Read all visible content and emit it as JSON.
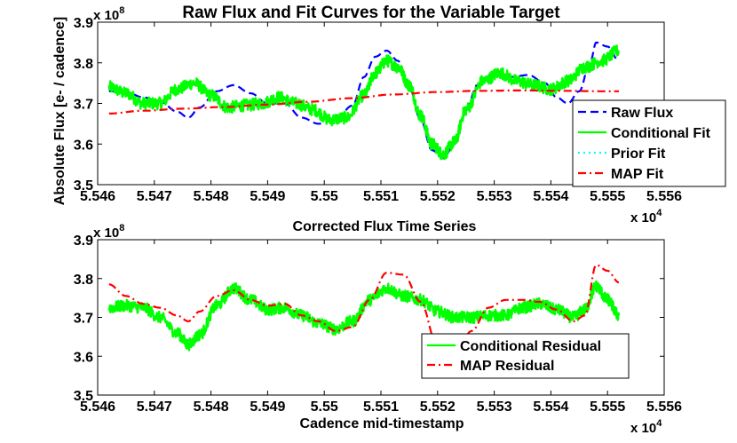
{
  "chart_data": [
    {
      "type": "line",
      "title": "Raw Flux and Fit Curves for the Variable Target",
      "ylabel": "Absolute Flux [e- / cadence]",
      "xlabel": "",
      "x_exponent": "x 10",
      "x_exponent_power": "4",
      "y_exponent": "x 10",
      "y_exponent_power": "8",
      "xlim": [
        5.546,
        5.556
      ],
      "ylim": [
        3.5,
        3.9
      ],
      "x_ticks": [
        "5.546",
        "5.547",
        "5.548",
        "5.549",
        "5.55",
        "5.551",
        "5.552",
        "5.553",
        "5.554",
        "5.555",
        "5.556"
      ],
      "y_ticks": [
        "3.5",
        "3.6",
        "3.7",
        "3.8",
        "3.9"
      ],
      "legend_position": "bottom-right",
      "series": [
        {
          "name": "Raw Flux",
          "color": "#0000ff",
          "style": "dashed",
          "x": [
            5.5462,
            5.5465,
            5.5468,
            5.5471,
            5.5474,
            5.5476,
            5.5478,
            5.5481,
            5.5484,
            5.5487,
            5.549,
            5.5493,
            5.5496,
            5.5499,
            5.5502,
            5.5505,
            5.5507,
            5.5509,
            5.5511,
            5.5513,
            5.5515,
            5.5517,
            5.5519,
            5.5521,
            5.5523,
            5.5525,
            5.5527,
            5.553,
            5.5533,
            5.5536,
            5.5539,
            5.5541,
            5.5543,
            5.5545,
            5.5547,
            5.5548,
            5.555,
            5.5552
          ],
          "y": [
            3.73,
            3.728,
            3.715,
            3.705,
            3.68,
            3.665,
            3.69,
            3.73,
            3.745,
            3.725,
            3.7,
            3.7,
            3.665,
            3.65,
            3.66,
            3.695,
            3.765,
            3.815,
            3.83,
            3.805,
            3.74,
            3.66,
            3.585,
            3.565,
            3.6,
            3.68,
            3.745,
            3.775,
            3.765,
            3.77,
            3.75,
            3.715,
            3.7,
            3.73,
            3.805,
            3.85,
            3.84,
            3.805
          ]
        },
        {
          "name": "Conditional Fit",
          "color": "#00ff00",
          "style": "solid",
          "x": [
            5.5462,
            5.5465,
            5.5468,
            5.5471,
            5.5474,
            5.5477,
            5.548,
            5.5483,
            5.5486,
            5.5489,
            5.5492,
            5.5495,
            5.5498,
            5.5501,
            5.5504,
            5.5507,
            5.5509,
            5.5511,
            5.5513,
            5.5515,
            5.5517,
            5.5519,
            5.5521,
            5.5523,
            5.5525,
            5.5528,
            5.5531,
            5.5534,
            5.5537,
            5.554,
            5.5543,
            5.5546,
            5.5549,
            5.5552
          ],
          "y": [
            3.74,
            3.725,
            3.7,
            3.7,
            3.735,
            3.75,
            3.72,
            3.69,
            3.695,
            3.7,
            3.715,
            3.7,
            3.685,
            3.66,
            3.665,
            3.72,
            3.775,
            3.805,
            3.79,
            3.745,
            3.67,
            3.6,
            3.575,
            3.605,
            3.685,
            3.755,
            3.775,
            3.755,
            3.745,
            3.735,
            3.755,
            3.79,
            3.805,
            3.83
          ]
        },
        {
          "name": "Prior Fit",
          "color": "#00ffff",
          "style": "dotted",
          "x": [],
          "y": []
        },
        {
          "name": "MAP Fit",
          "color": "#ff0000",
          "style": "dashdot",
          "x": [
            5.5462,
            5.5468,
            5.5475,
            5.5482,
            5.549,
            5.5497,
            5.5505,
            5.5512,
            5.552,
            5.5527,
            5.5535,
            5.5542,
            5.5549,
            5.5552
          ],
          "y": [
            3.675,
            3.682,
            3.687,
            3.691,
            3.697,
            3.704,
            3.713,
            3.722,
            3.728,
            3.731,
            3.732,
            3.731,
            3.73,
            3.73
          ]
        }
      ]
    },
    {
      "type": "line",
      "title": "Corrected Flux Time Series",
      "xlabel": "Cadence mid-timestamp",
      "ylabel": "",
      "x_exponent": "x 10",
      "x_exponent_power": "4",
      "y_exponent": "x 10",
      "y_exponent_power": "8",
      "xlim": [
        5.546,
        5.556
      ],
      "ylim": [
        3.5,
        3.9
      ],
      "x_ticks": [
        "5.546",
        "5.547",
        "5.548",
        "5.549",
        "5.55",
        "5.551",
        "5.552",
        "5.553",
        "5.554",
        "5.555",
        "5.556"
      ],
      "y_ticks": [
        "3.5",
        "3.6",
        "3.7",
        "3.8",
        "3.9"
      ],
      "legend_position": "bottom-right",
      "series": [
        {
          "name": "Conditional Residual",
          "color": "#00ff00",
          "style": "solid",
          "x": [
            5.5462,
            5.5465,
            5.5468,
            5.5471,
            5.5474,
            5.5476,
            5.5478,
            5.5481,
            5.5484,
            5.5487,
            5.549,
            5.5493,
            5.5496,
            5.5499,
            5.5502,
            5.5505,
            5.5508,
            5.5511,
            5.5514,
            5.5517,
            5.552,
            5.5523,
            5.5526,
            5.5529,
            5.5532,
            5.5535,
            5.5538,
            5.5541,
            5.5544,
            5.5546,
            5.5548,
            5.555,
            5.5552
          ],
          "y": [
            3.725,
            3.73,
            3.725,
            3.7,
            3.66,
            3.63,
            3.655,
            3.73,
            3.775,
            3.745,
            3.72,
            3.725,
            3.705,
            3.685,
            3.67,
            3.69,
            3.745,
            3.775,
            3.755,
            3.745,
            3.715,
            3.7,
            3.7,
            3.705,
            3.705,
            3.725,
            3.735,
            3.72,
            3.7,
            3.72,
            3.78,
            3.745,
            3.705
          ]
        },
        {
          "name": "MAP Residual",
          "color": "#ff0000",
          "style": "dashdot",
          "x": [
            5.5462,
            5.5465,
            5.5468,
            5.5471,
            5.5474,
            5.5476,
            5.5478,
            5.5481,
            5.5484,
            5.5487,
            5.549,
            5.5493,
            5.5496,
            5.5499,
            5.5502,
            5.5505,
            5.5508,
            5.5511,
            5.5514,
            5.5517,
            5.552,
            5.5523,
            5.5526,
            5.5529,
            5.5532,
            5.5535,
            5.5538,
            5.5541,
            5.5544,
            5.5546,
            5.5548,
            5.555,
            5.5552
          ],
          "y": [
            3.785,
            3.755,
            3.735,
            3.725,
            3.705,
            3.69,
            3.715,
            3.755,
            3.77,
            3.745,
            3.73,
            3.735,
            3.705,
            3.69,
            3.665,
            3.675,
            3.745,
            3.815,
            3.81,
            3.74,
            3.625,
            3.6,
            3.665,
            3.725,
            3.745,
            3.745,
            3.74,
            3.72,
            3.69,
            3.705,
            3.835,
            3.82,
            3.79
          ]
        }
      ]
    }
  ]
}
